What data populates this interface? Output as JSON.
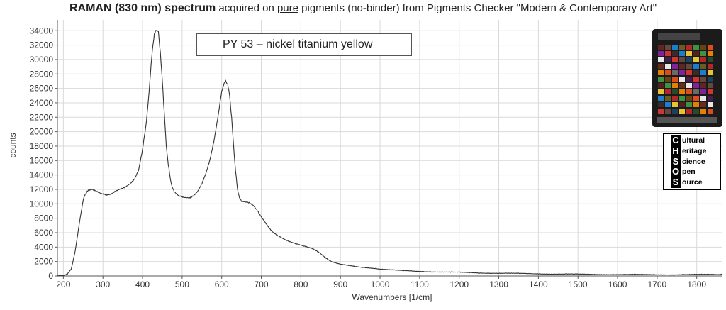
{
  "title": {
    "bold": "RAMAN (830 nm) spectrum",
    "pre": " acquired on ",
    "underlined": "pure",
    "post": " pigments (no-binder) from Pigments Checker \"Modern & Contemporary Art\""
  },
  "legend": {
    "label": "PY 53 – nickel titanium yellow"
  },
  "logo": {
    "letters": [
      "C",
      "H",
      "S",
      "O",
      "S"
    ],
    "words": [
      "ultural",
      "eritage",
      "cience",
      "pen",
      "ource"
    ]
  },
  "chart_data": {
    "type": "line",
    "xlabel": "Wavenumbers [1/cm]",
    "ylabel": "counts",
    "xlim": [
      185,
      1865
    ],
    "ylim": [
      0,
      35500
    ],
    "xticks": [
      200,
      300,
      400,
      500,
      600,
      700,
      800,
      900,
      1000,
      1100,
      1200,
      1300,
      1400,
      1500,
      1600,
      1700,
      1800
    ],
    "yticks": [
      0,
      2000,
      4000,
      6000,
      8000,
      10000,
      12000,
      14000,
      16000,
      18000,
      20000,
      22000,
      24000,
      26000,
      28000,
      30000,
      32000,
      34000
    ],
    "grid": true,
    "legend_position": "top-center",
    "series": [
      {
        "name": "PY 53 – nickel titanium yellow",
        "color": "#333333",
        "x": [
          185,
          200,
          210,
          220,
          230,
          240,
          250,
          255,
          260,
          265,
          270,
          280,
          290,
          300,
          310,
          320,
          330,
          340,
          350,
          360,
          370,
          380,
          390,
          400,
          405,
          410,
          415,
          420,
          425,
          430,
          435,
          440,
          445,
          450,
          455,
          460,
          465,
          470,
          475,
          480,
          490,
          500,
          510,
          520,
          530,
          540,
          550,
          560,
          570,
          580,
          590,
          595,
          600,
          605,
          610,
          615,
          620,
          625,
          630,
          635,
          640,
          645,
          650,
          660,
          670,
          680,
          690,
          700,
          710,
          720,
          730,
          740,
          750,
          760,
          770,
          780,
          790,
          800,
          810,
          820,
          830,
          840,
          850,
          860,
          870,
          880,
          890,
          900,
          920,
          940,
          960,
          980,
          1000,
          1050,
          1100,
          1150,
          1200,
          1250,
          1300,
          1350,
          1400,
          1450,
          1500,
          1550,
          1600,
          1650,
          1700,
          1750,
          1800,
          1850,
          1865
        ],
        "y": [
          0,
          100,
          300,
          1000,
          3500,
          7200,
          10500,
          11300,
          11700,
          11900,
          12000,
          11800,
          11500,
          11300,
          11200,
          11300,
          11700,
          12000,
          12200,
          12500,
          12900,
          13500,
          14700,
          17500,
          19500,
          21500,
          24500,
          28000,
          31500,
          33500,
          34200,
          33800,
          31000,
          27000,
          22500,
          18000,
          15500,
          13500,
          12300,
          11700,
          11200,
          11000,
          10900,
          10900,
          11200,
          11800,
          12800,
          14200,
          16000,
          18500,
          21800,
          23800,
          25500,
          26600,
          27000,
          26600,
          25000,
          22000,
          18000,
          14500,
          12000,
          10800,
          10400,
          10300,
          10200,
          9800,
          9100,
          8200,
          7400,
          6600,
          6000,
          5600,
          5300,
          5000,
          4800,
          4600,
          4450,
          4300,
          4150,
          4000,
          3800,
          3500,
          3100,
          2600,
          2200,
          1900,
          1750,
          1600,
          1450,
          1300,
          1200,
          1100,
          950,
          750,
          650,
          550,
          500,
          430,
          380,
          340,
          300,
          270,
          240,
          220,
          200,
          190,
          180,
          170,
          200,
          220,
          220
        ]
      }
    ]
  }
}
